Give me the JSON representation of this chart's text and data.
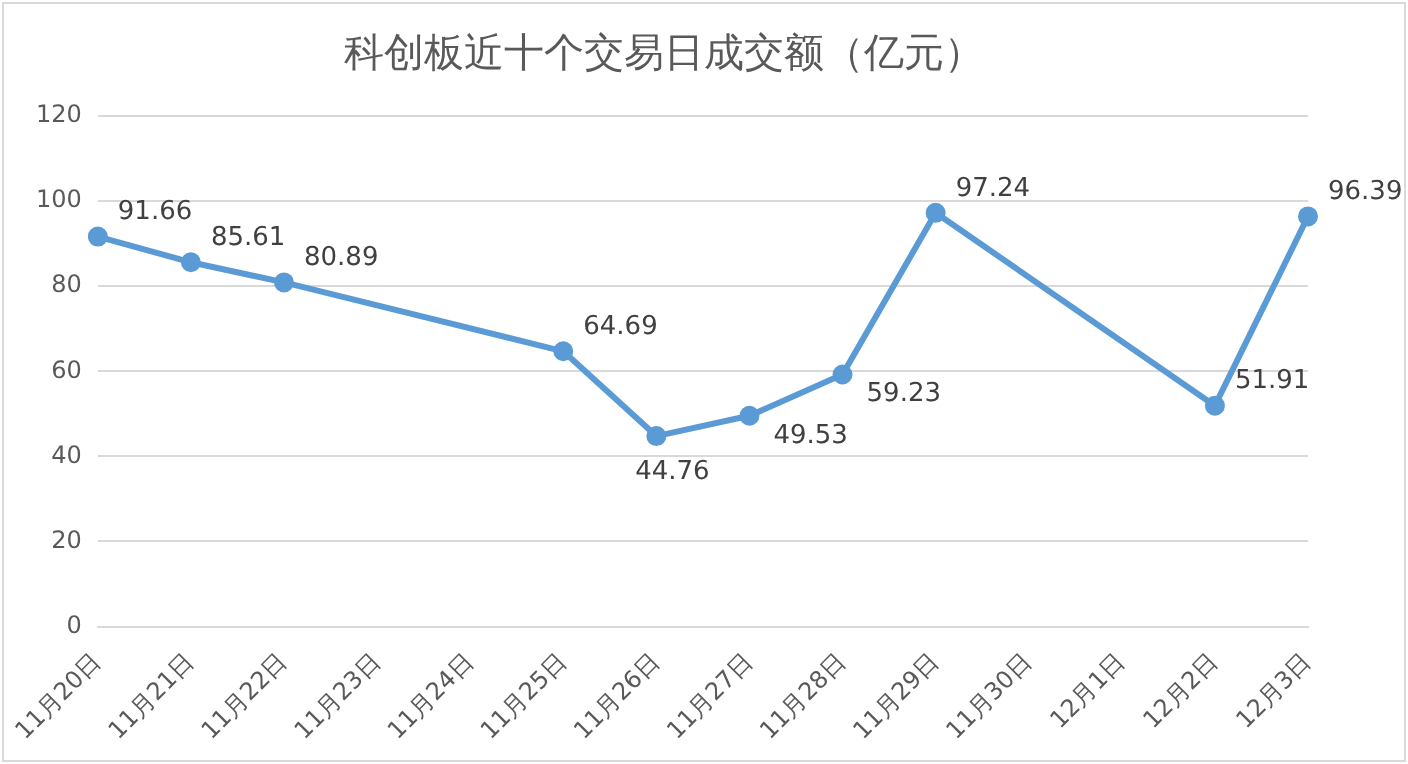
{
  "chart_data": {
    "type": "line",
    "title": "科创板近十个交易日成交额（亿元）",
    "categories": [
      "11月20日",
      "11月21日",
      "11月22日",
      "11月23日",
      "11月24日",
      "11月25日",
      "11月26日",
      "11月27日",
      "11月28日",
      "11月29日",
      "11月30日",
      "12月1日",
      "12月2日",
      "12月3日"
    ],
    "series": [
      {
        "color": "#5b9bd5",
        "values": [
          91.66,
          85.61,
          80.89,
          null,
          null,
          64.69,
          44.76,
          49.53,
          59.23,
          97.24,
          null,
          null,
          51.91,
          96.39
        ]
      }
    ],
    "ylim": [
      0,
      120
    ],
    "yticks": [
      0,
      20,
      40,
      60,
      80,
      100,
      120
    ],
    "grid": "y",
    "legend": false,
    "marker": "circle",
    "line_style": "solid",
    "data_labels": true
  }
}
